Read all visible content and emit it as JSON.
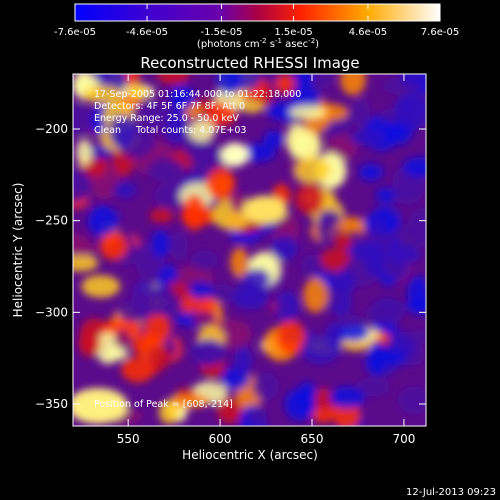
{
  "colorbar": {
    "ticks": [
      "-7.6e-05",
      "-4.6e-05",
      "-1.5e-05",
      "1.5e-05",
      "4.6e-05",
      "7.6e-05"
    ],
    "range": [
      -7.6e-05,
      7.6e-05
    ],
    "units_main": "(photons cm",
    "units_sup1": "-2",
    "units_mid": " s",
    "units_sup2": "-1",
    "units_end": " asec",
    "units_sup3": "-2",
    "units_close": ")"
  },
  "chart_data": {
    "type": "heatmap",
    "title": "Reconstructed RHESSI Image",
    "xlabel": "Heliocentric X (arcsec)",
    "ylabel": "Heliocentric Y (arcsec)",
    "xlim": [
      520,
      712
    ],
    "ylim": [
      -362,
      -170
    ],
    "xticks": [
      550,
      600,
      650,
      700
    ],
    "yticks": [
      -200,
      -250,
      -300,
      -350
    ],
    "annotations": {
      "time_range": "17-Sep-2005 01:16:44.000 to 01:22:18.000",
      "detectors": "Detectors: 4F 5F 6F 7F 8F, Att 0",
      "energy": "Energy Range: 25.0 - 50.0 keV",
      "method": "Clean     Total counts: 4.07E+03",
      "peak": "Position of Peak = [608,-214]"
    },
    "peak": [
      608,
      -214
    ],
    "colormap": "blue-purple-red-yellow-white"
  },
  "timestamp": "12-Jul-2013 09:23"
}
